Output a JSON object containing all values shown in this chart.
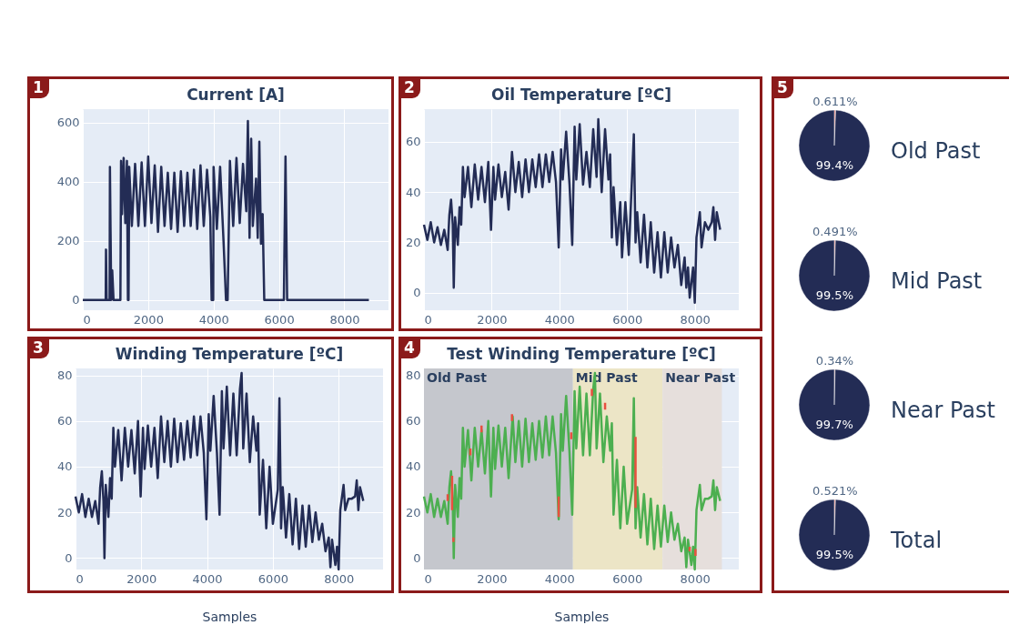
{
  "chart_data": [
    {
      "type": "line",
      "title": "Current [A]",
      "annotations": [
        "1"
      ],
      "xlim": [
        0,
        9350
      ],
      "ylim": [
        -35,
        645
      ],
      "xticks": [
        0,
        2000,
        4000,
        6000,
        8000
      ],
      "yticks": [
        0,
        200,
        400,
        600
      ],
      "grid": true,
      "series": [
        {
          "color": "#232c55",
          "x": [
            0,
            700,
            710,
            730,
            820,
            830,
            870,
            900,
            940,
            1150,
            1170,
            1200,
            1250,
            1300,
            1350,
            1380,
            1400,
            1420,
            1500,
            1600,
            1700,
            1800,
            1900,
            2000,
            2100,
            2200,
            2300,
            2400,
            2500,
            2600,
            2700,
            2800,
            2900,
            3000,
            3100,
            3200,
            3300,
            3400,
            3500,
            3600,
            3700,
            3800,
            3900,
            3940,
            3990,
            4000,
            4100,
            4200,
            4300,
            4380,
            4430,
            4500,
            4600,
            4700,
            4800,
            4900,
            5000,
            5050,
            5100,
            5150,
            5200,
            5300,
            5350,
            5400,
            5450,
            5500,
            5550,
            6150,
            6200,
            6250,
            8750
          ],
          "values": [
            0,
            0,
            170,
            0,
            0,
            450,
            0,
            100,
            0,
            0,
            470,
            290,
            480,
            260,
            470,
            0,
            0,
            450,
            250,
            460,
            250,
            465,
            250,
            485,
            260,
            455,
            230,
            450,
            250,
            430,
            240,
            430,
            230,
            435,
            250,
            430,
            250,
            440,
            240,
            455,
            250,
            440,
            280,
            0,
            0,
            450,
            240,
            450,
            210,
            0,
            0,
            470,
            250,
            480,
            260,
            460,
            300,
            605,
            210,
            545,
            250,
            410,
            210,
            535,
            190,
            290,
            0,
            0,
            485,
            0,
            0
          ]
        }
      ]
    },
    {
      "type": "line",
      "title": "Oil Temperature [ºC]",
      "annotations": [
        "2"
      ],
      "xlim": [
        0,
        9300
      ],
      "ylim": [
        -7,
        73
      ],
      "xticks": [
        0,
        2000,
        4000,
        6000,
        8000
      ],
      "yticks": [
        0,
        20,
        40,
        60
      ],
      "grid": true,
      "series": [
        {
          "color": "#232c55",
          "x": [
            0,
            100,
            200,
            300,
            400,
            500,
            600,
            700,
            750,
            800,
            850,
            880,
            920,
            1000,
            1050,
            1100,
            1150,
            1200,
            1300,
            1400,
            1500,
            1600,
            1700,
            1800,
            1900,
            1980,
            2050,
            2100,
            2200,
            2300,
            2400,
            2500,
            2600,
            2700,
            2800,
            2900,
            3000,
            3100,
            3200,
            3300,
            3400,
            3500,
            3600,
            3700,
            3800,
            3900,
            3980,
            4050,
            4100,
            4200,
            4300,
            4380,
            4450,
            4500,
            4600,
            4700,
            4800,
            4900,
            5000,
            5100,
            5150,
            5250,
            5350,
            5450,
            5500,
            5550,
            5600,
            5700,
            5800,
            5850,
            5950,
            6050,
            6200,
            6250,
            6300,
            6400,
            6500,
            6600,
            6700,
            6800,
            6900,
            7000,
            7100,
            7200,
            7300,
            7400,
            7500,
            7600,
            7700,
            7750,
            7800,
            7850,
            7950,
            8000,
            8050,
            8150,
            8200,
            8300,
            8400,
            8500,
            8550,
            8600,
            8650,
            8750
          ],
          "values": [
            27,
            21,
            28,
            20,
            26,
            19,
            25,
            17,
            31,
            37,
            27,
            2,
            30,
            19,
            34,
            27,
            50,
            38,
            50,
            34,
            51,
            37,
            50,
            36,
            52,
            25,
            50,
            37,
            51,
            38,
            48,
            33,
            56,
            40,
            52,
            38,
            53,
            40,
            53,
            42,
            55,
            42,
            55,
            44,
            56,
            44,
            18,
            57,
            45,
            64,
            43,
            19,
            66,
            45,
            67,
            43,
            56,
            42,
            65,
            46,
            69,
            40,
            65,
            45,
            55,
            22,
            42,
            19,
            36,
            14,
            36,
            15,
            63,
            20,
            32,
            12,
            31,
            10,
            28,
            8,
            24,
            6,
            24,
            8,
            22,
            10,
            19,
            3,
            14,
            2,
            10,
            -2,
            10,
            -4,
            22,
            32,
            18,
            28,
            25,
            28,
            34,
            21,
            32,
            25
          ]
        }
      ]
    },
    {
      "type": "line",
      "title": "Winding Temperature [ºC]",
      "xlabel": "Samples",
      "annotations": [
        "3"
      ],
      "xlim": [
        0,
        9350
      ],
      "ylim": [
        -5,
        83
      ],
      "xticks": [
        0,
        2000,
        4000,
        6000,
        8000
      ],
      "yticks": [
        0,
        20,
        40,
        60,
        80
      ],
      "grid": true,
      "series": [
        {
          "color": "#232c55",
          "x": [
            0,
            100,
            200,
            300,
            400,
            500,
            600,
            700,
            750,
            800,
            850,
            880,
            920,
            1000,
            1050,
            1100,
            1150,
            1200,
            1300,
            1400,
            1500,
            1600,
            1700,
            1800,
            1900,
            1980,
            2050,
            2100,
            2200,
            2300,
            2400,
            2500,
            2600,
            2700,
            2800,
            2900,
            3000,
            3100,
            3200,
            3300,
            3400,
            3500,
            3600,
            3700,
            3800,
            3900,
            3980,
            4050,
            4100,
            4200,
            4300,
            4380,
            4450,
            4500,
            4600,
            4700,
            4800,
            4900,
            5000,
            5050,
            5100,
            5200,
            5300,
            5400,
            5500,
            5550,
            5600,
            5700,
            5800,
            5900,
            6000,
            6150,
            6200,
            6250,
            6300,
            6400,
            6500,
            6600,
            6700,
            6800,
            6900,
            7000,
            7100,
            7200,
            7300,
            7400,
            7500,
            7600,
            7700,
            7750,
            7800,
            7900,
            7950,
            8000,
            8050,
            8150,
            8200,
            8300,
            8400,
            8500,
            8550,
            8600,
            8650,
            8750
          ],
          "values": [
            27,
            20,
            28,
            18,
            26,
            18,
            25,
            15,
            31,
            38,
            25,
            0,
            32,
            18,
            35,
            26,
            57,
            40,
            56,
            34,
            57,
            40,
            56,
            37,
            60,
            27,
            57,
            39,
            58,
            40,
            57,
            35,
            62,
            42,
            60,
            40,
            61,
            42,
            59,
            43,
            60,
            44,
            62,
            45,
            62,
            46,
            17,
            63,
            47,
            71,
            46,
            19,
            73,
            48,
            75,
            45,
            72,
            45,
            74,
            81,
            48,
            72,
            42,
            62,
            47,
            59,
            19,
            43,
            13,
            40,
            15,
            30,
            70,
            13,
            31,
            9,
            28,
            6,
            26,
            4,
            23,
            5,
            23,
            7,
            20,
            8,
            15,
            3,
            9,
            -4,
            8,
            -3,
            5,
            -5,
            21,
            32,
            21,
            26,
            26,
            27,
            34,
            21,
            31,
            25
          ]
        }
      ]
    },
    {
      "type": "line",
      "title": "Test Winding Temperature [ºC]",
      "xlabel": "Samples",
      "annotations": [
        "4"
      ],
      "xlim": [
        0,
        9300
      ],
      "ylim": [
        -5,
        83
      ],
      "xticks": [
        0,
        2000,
        4000,
        6000,
        8000
      ],
      "yticks": [
        0,
        20,
        40,
        60,
        80
      ],
      "grid": true,
      "bands": [
        {
          "axis": "x",
          "from": 0,
          "to": 4400,
          "label": "Old Past",
          "color": "#c5c7cd"
        },
        {
          "axis": "x",
          "from": 4400,
          "to": 7050,
          "label": "Mid Past",
          "color": "#ece5c6"
        },
        {
          "axis": "x",
          "from": 7050,
          "to": 8800,
          "label": "Near Past",
          "color": "#e6dfdc"
        }
      ],
      "series": [
        {
          "color": "#4caf50",
          "x": [
            0,
            100,
            200,
            300,
            400,
            500,
            600,
            700,
            750,
            800,
            850,
            880,
            920,
            1000,
            1050,
            1100,
            1150,
            1200,
            1300,
            1400,
            1500,
            1600,
            1700,
            1800,
            1900,
            1980,
            2050,
            2100,
            2200,
            2300,
            2400,
            2500,
            2620,
            2700,
            2800,
            2900,
            3000,
            3100,
            3200,
            3300,
            3400,
            3500,
            3600,
            3700,
            3800,
            3900,
            3980,
            4050,
            4100,
            4200,
            4300,
            4380,
            4450,
            4500,
            4600,
            4700,
            4800,
            4900,
            5000,
            5050,
            5100,
            5200,
            5300,
            5400,
            5500,
            5550,
            5600,
            5700,
            5800,
            5900,
            6000,
            6150,
            6200,
            6250,
            6300,
            6400,
            6500,
            6600,
            6700,
            6800,
            6900,
            7000,
            7100,
            7200,
            7300,
            7400,
            7500,
            7600,
            7700,
            7750,
            7800,
            7900,
            7950,
            8000,
            8050,
            8150,
            8200,
            8300,
            8400,
            8500,
            8550,
            8600,
            8650,
            8750
          ],
          "values": [
            27,
            20,
            28,
            18,
            26,
            18,
            25,
            15,
            31,
            38,
            25,
            0,
            32,
            18,
            35,
            26,
            57,
            40,
            56,
            34,
            57,
            40,
            56,
            37,
            60,
            27,
            57,
            39,
            58,
            40,
            57,
            35,
            62,
            42,
            60,
            40,
            61,
            42,
            59,
            43,
            60,
            44,
            62,
            45,
            62,
            46,
            17,
            63,
            47,
            71,
            46,
            19,
            73,
            48,
            75,
            45,
            72,
            45,
            74,
            81,
            48,
            72,
            42,
            62,
            47,
            59,
            19,
            43,
            13,
            40,
            15,
            30,
            70,
            13,
            31,
            9,
            28,
            6,
            26,
            4,
            23,
            5,
            23,
            7,
            20,
            8,
            15,
            3,
            9,
            -4,
            8,
            -3,
            5,
            -5,
            21,
            32,
            21,
            26,
            26,
            27,
            34,
            21,
            31,
            25
          ]
        },
        {
          "color": "#e8503f",
          "x": [
            700,
            700,
            701,
            830,
            830,
            831,
            870,
            870,
            871,
            1370,
            1370,
            1371,
            1700,
            1700,
            1701,
            2600,
            2600,
            2601,
            3980,
            3980,
            3981,
            4350,
            4350,
            4351,
            4960,
            4960,
            4961,
            5350,
            5350,
            5351,
            6250,
            6250,
            6251,
            7850,
            7850,
            7851,
            8020,
            8020
          ],
          "values": [
            25,
            28,
            null,
            21,
            36,
            null,
            7,
            9,
            null,
            45,
            48,
            null,
            55,
            58,
            null,
            60,
            63,
            null,
            18,
            27,
            null,
            52,
            55,
            null,
            71,
            74,
            null,
            65,
            68,
            null,
            22,
            53,
            null,
            3,
            5,
            null,
            1,
            4
          ]
        }
      ]
    },
    {
      "type": "pie",
      "title": "Old Past",
      "annotations": [
        "5"
      ],
      "categories": [
        null,
        null
      ],
      "values": [
        0.611,
        99.4
      ],
      "value_labels": [
        "0.611%",
        "99.4%"
      ],
      "colors": [
        "#e8503f",
        "#232c55"
      ]
    },
    {
      "type": "pie",
      "title": "Mid Past",
      "categories": [
        null,
        null
      ],
      "values": [
        0.491,
        99.5
      ],
      "value_labels": [
        "0.491%",
        "99.5%"
      ],
      "colors": [
        "#e8503f",
        "#232c55"
      ]
    },
    {
      "type": "pie",
      "title": "Near Past",
      "categories": [
        null,
        null
      ],
      "values": [
        0.34,
        99.7
      ],
      "value_labels": [
        "0.34%",
        "99.7%"
      ],
      "colors": [
        "#e8503f",
        "#232c55"
      ]
    },
    {
      "type": "pie",
      "title": "Total",
      "categories": [
        null,
        null
      ],
      "values": [
        0.521,
        99.5
      ],
      "value_labels": [
        "0.521%",
        "99.5%"
      ],
      "colors": [
        "#e8503f",
        "#232c55"
      ]
    }
  ]
}
